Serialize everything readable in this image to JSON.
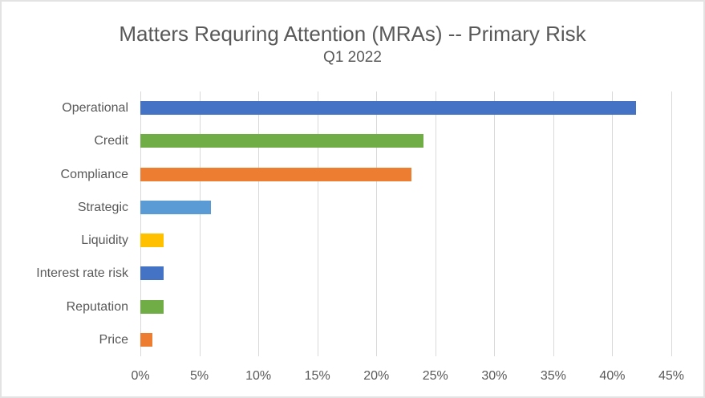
{
  "title": "Matters Requring Attention (MRAs) -- Primary Risk",
  "subtitle": "Q1 2022",
  "chart_data": {
    "type": "bar",
    "orientation": "horizontal",
    "title": "Matters Requring Attention (MRAs) -- Primary Risk",
    "subtitle": "Q1 2022",
    "categories": [
      "Operational",
      "Credit",
      "Compliance",
      "Strategic",
      "Liquidity",
      "Interest rate risk",
      "Reputation",
      "Price"
    ],
    "values": [
      42,
      24,
      23,
      6,
      2,
      2,
      2,
      1
    ],
    "unit": "%",
    "bar_colors": [
      "#4472C4",
      "#70AD47",
      "#ED7D31",
      "#5B9BD5",
      "#FFC000",
      "#4472C4",
      "#70AD47",
      "#ED7D31"
    ],
    "x_ticks": [
      "0%",
      "5%",
      "10%",
      "15%",
      "20%",
      "25%",
      "30%",
      "35%",
      "40%",
      "45%"
    ],
    "xlim": [
      0,
      45
    ],
    "xlabel": "",
    "ylabel": "",
    "grid": true,
    "gridline_color": "#D9D9D9",
    "text_color": "#595959",
    "legend": "none"
  }
}
